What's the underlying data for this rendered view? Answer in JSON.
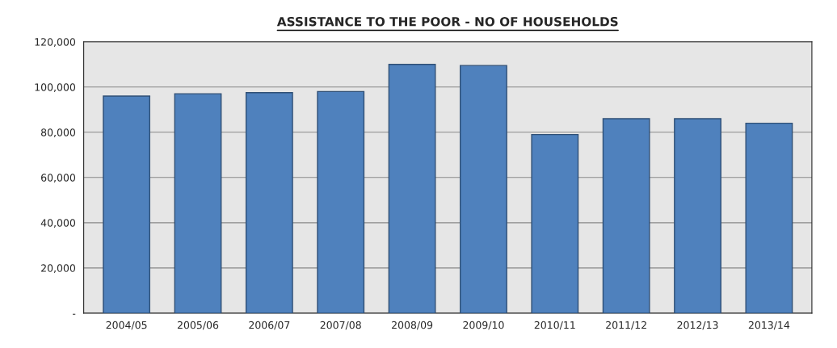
{
  "chart_data": {
    "type": "bar",
    "title": "ASSISTANCE TO THE POOR - NO OF HOUSEHOLDS",
    "categories": [
      "2004/05",
      "2005/06",
      "2006/07",
      "2007/08",
      "2008/09",
      "2009/10",
      "2010/11",
      "2011/12",
      "2012/13",
      "2013/14"
    ],
    "values": [
      96000,
      97000,
      97500,
      98000,
      110000,
      109500,
      79000,
      86000,
      86000,
      84000
    ],
    "color": "#4f81bd",
    "ylim": [
      0,
      120000
    ],
    "yticks": [
      {
        "value": 0,
        "label": "-"
      },
      {
        "value": 20000,
        "label": "20,000"
      },
      {
        "value": 40000,
        "label": "40,000"
      },
      {
        "value": 60000,
        "label": "60,000"
      },
      {
        "value": 80000,
        "label": "80,000"
      },
      {
        "value": 100000,
        "label": "100,000"
      },
      {
        "value": 120000,
        "label": "120,000"
      }
    ],
    "grid": "y",
    "legend": false
  }
}
